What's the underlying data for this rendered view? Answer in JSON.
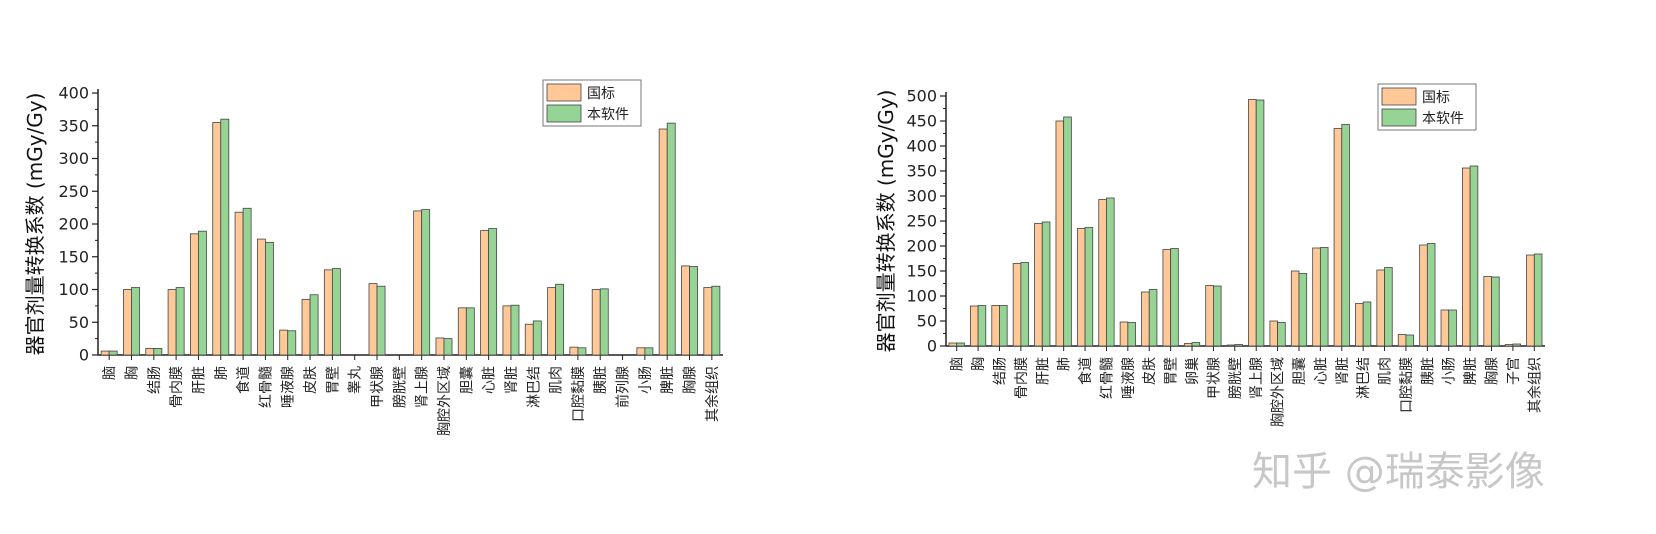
{
  "colors": {
    "guobiao": "#ffc896",
    "software": "#95d495",
    "bar_stroke": "#444444",
    "axis": "#222222",
    "watermark": "#c7c7c7"
  },
  "watermark": "知乎 @瑞泰影像",
  "chart_data": [
    {
      "type": "bar",
      "ylabel": "器官剂量转换系数 (mGy/Gy)",
      "ylim": [
        0,
        400
      ],
      "yticks": [
        0,
        50,
        100,
        150,
        200,
        250,
        300,
        350,
        400
      ],
      "legend": {
        "position": "top-right",
        "entries": [
          "国标",
          "本软件"
        ]
      },
      "categories": [
        "脑",
        "胸",
        "结肠",
        "骨内膜",
        "肝脏",
        "肺",
        "食道",
        "红骨髓",
        "唾液腺",
        "皮肤",
        "胃壁",
        "睾丸",
        "甲状腺",
        "膀胱壁",
        "肾上腺",
        "胸腔外区域",
        "胆囊",
        "心脏",
        "肾脏",
        "淋巴结",
        "肌肉",
        "口腔黏膜",
        "胰脏",
        "前列腺",
        "小肠",
        "脾脏",
        "胸腺",
        "其余组织"
      ],
      "series": [
        {
          "name": "国标",
          "values": [
            6,
            100,
            10,
            100,
            185,
            355,
            218,
            177,
            38,
            85,
            130,
            0,
            109,
            0,
            220,
            26,
            72,
            190,
            75,
            47,
            103,
            12,
            100,
            0,
            11,
            345,
            136,
            103
          ]
        },
        {
          "name": "本软件",
          "values": [
            6,
            103,
            10,
            103,
            189,
            360,
            224,
            172,
            37,
            92,
            132,
            0,
            105,
            0,
            222,
            25,
            72,
            193,
            76,
            52,
            108,
            11,
            101,
            0,
            11,
            354,
            135,
            105
          ]
        }
      ]
    },
    {
      "type": "bar",
      "ylabel": "器官剂量转换系数 (mGy/Gy)",
      "ylim": [
        0,
        500
      ],
      "yticks": [
        0,
        50,
        100,
        150,
        200,
        250,
        300,
        350,
        400,
        450,
        500
      ],
      "legend": {
        "position": "top-right",
        "entries": [
          "国标",
          "本软件"
        ]
      },
      "categories": [
        "脑",
        "胸",
        "结肠",
        "骨内膜",
        "肝脏",
        "肺",
        "食道",
        "红骨髓",
        "唾液腺",
        "皮肤",
        "胃壁",
        "卵巢",
        "甲状腺",
        "膀胱壁",
        "肾上腺",
        "胸腔外区域",
        "胆囊",
        "心脏",
        "肾脏",
        "淋巴结",
        "肌肉",
        "口腔黏膜",
        "胰脏",
        "小肠",
        "脾脏",
        "胸腺",
        "子宫",
        "其余组织"
      ],
      "series": [
        {
          "name": "国标",
          "values": [
            6,
            80,
            81,
            165,
            245,
            450,
            235,
            293,
            48,
            108,
            193,
            5,
            121,
            2,
            493,
            50,
            150,
            196,
            435,
            85,
            152,
            23,
            202,
            72,
            356,
            139,
            3,
            182
          ]
        },
        {
          "name": "本软件",
          "values": [
            6,
            81,
            81,
            167,
            248,
            458,
            237,
            296,
            47,
            113,
            195,
            7,
            120,
            3,
            492,
            47,
            145,
            197,
            443,
            88,
            157,
            22,
            205,
            72,
            360,
            138,
            4,
            184
          ]
        }
      ]
    }
  ]
}
